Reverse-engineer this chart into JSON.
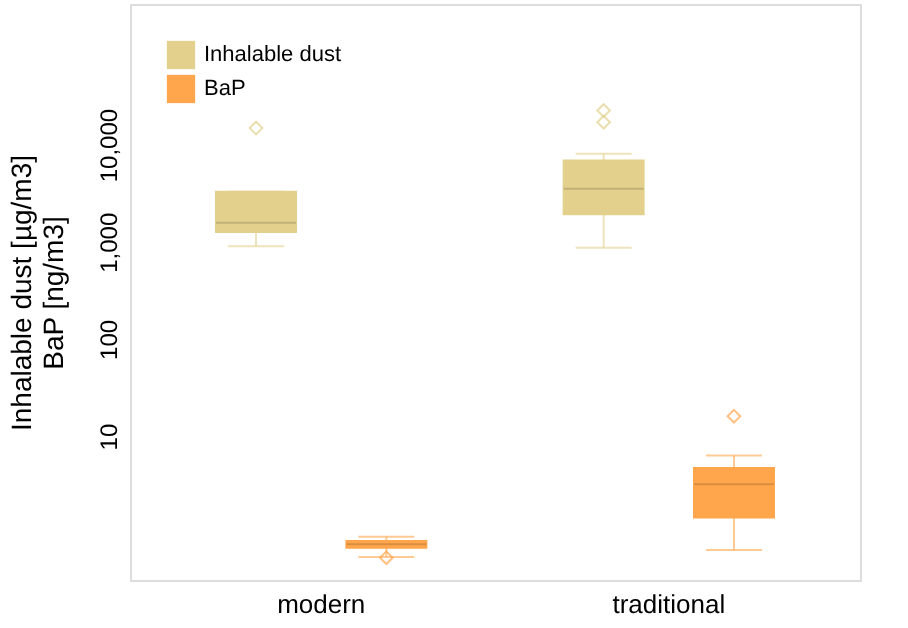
{
  "chart_data": {
    "type": "box",
    "ylabel": "Inhalable dust [µg/m3]\nBaP [ng/m3]",
    "categories": [
      "modern",
      "traditional"
    ],
    "log": true,
    "ylim": [
      0.33,
      280000
    ],
    "yticks": [
      10,
      100,
      {
        "value": 1000,
        "label": "1,000"
      },
      {
        "value": 10000,
        "label": "10,000"
      }
    ],
    "grid": false,
    "legend": "top left",
    "series": [
      {
        "name": "Inhalable dust",
        "color": "#e2d08c",
        "boxes": [
          {
            "low": 900,
            "q1": 1260,
            "median": 1570,
            "q3": 3270,
            "high": 3270,
            "outliers": [
              14800
            ]
          },
          {
            "low": 870,
            "q1": 1920,
            "median": 3520,
            "q3": 6880,
            "high": 8040,
            "outliers": [
              17000,
              22400
            ]
          }
        ]
      },
      {
        "name": "BaP",
        "color": "#ffa64d",
        "boxes": [
          {
            "low": 0.57,
            "q1": 0.71,
            "median": 0.77,
            "q3": 0.83,
            "high": 0.92,
            "outliers": [
              0.56
            ]
          },
          {
            "low": 0.67,
            "q1": 1.45,
            "median": 3.2,
            "q3": 4.7,
            "high": 6.3,
            "outliers": [
              16
            ]
          }
        ]
      }
    ]
  }
}
